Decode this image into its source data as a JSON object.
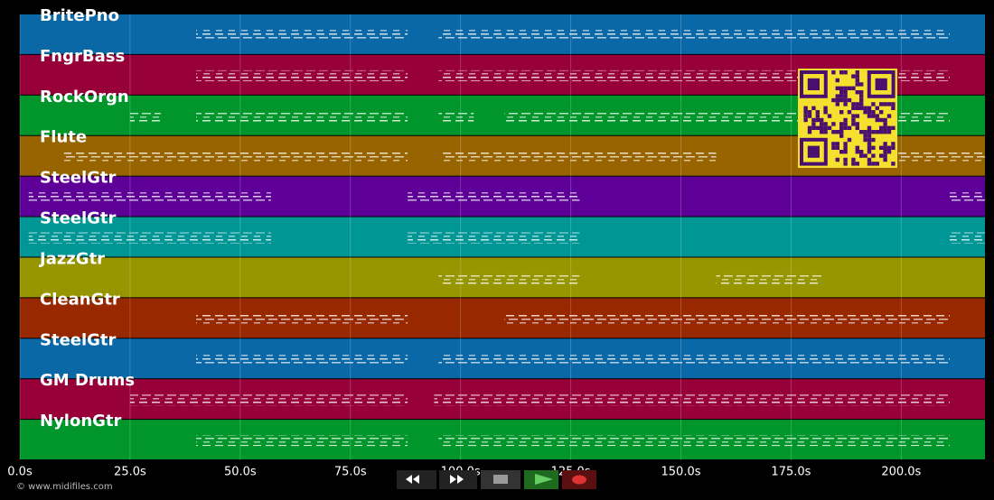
{
  "chart_data": {
    "type": "timeline",
    "xlim": [
      0,
      219
    ],
    "xticks": [
      {
        "value": 0,
        "label": "0.0s"
      },
      {
        "value": 25,
        "label": "25.0s"
      },
      {
        "value": 50,
        "label": "50.0s"
      },
      {
        "value": 75,
        "label": "75.0s"
      },
      {
        "value": 100,
        "label": "100.0s"
      },
      {
        "value": 125,
        "label": "125.0s"
      },
      {
        "value": 150,
        "label": "150.0s"
      },
      {
        "value": 175,
        "label": "175.0s"
      },
      {
        "value": 200,
        "label": "200.0s"
      }
    ],
    "grid": true,
    "series": [
      {
        "name": "BritePno",
        "color": "#0a68a6",
        "segments": [
          [
            40,
            88
          ],
          [
            95,
            211
          ]
        ]
      },
      {
        "name": "FngrBass",
        "color": "#98003a",
        "segments": [
          [
            40,
            88
          ],
          [
            95,
            211
          ]
        ]
      },
      {
        "name": "RockOrgn",
        "color": "#00962c",
        "segments": [
          [
            25,
            32
          ],
          [
            40,
            88
          ],
          [
            95,
            103
          ],
          [
            110,
            211
          ]
        ]
      },
      {
        "name": "Flute",
        "color": "#986400",
        "segments": [
          [
            10,
            88
          ],
          [
            96,
            158
          ],
          [
            199,
            219
          ]
        ]
      },
      {
        "name": "SteelGtr",
        "color": "#5e0098",
        "segments": [
          [
            2,
            57
          ],
          [
            88,
            127
          ],
          [
            211,
            219
          ]
        ]
      },
      {
        "name": "SteelGtr",
        "color": "#009696",
        "segments": [
          [
            2,
            57
          ],
          [
            88,
            127
          ],
          [
            211,
            219
          ]
        ]
      },
      {
        "name": "JazzGtr",
        "color": "#989600",
        "segments": [
          [
            95,
            127
          ],
          [
            158,
            182
          ]
        ]
      },
      {
        "name": "CleanGtr",
        "color": "#982800",
        "segments": [
          [
            40,
            88
          ],
          [
            110,
            211
          ]
        ]
      },
      {
        "name": "SteelGtr",
        "color": "#0a68a6",
        "segments": [
          [
            40,
            88
          ],
          [
            95,
            211
          ]
        ]
      },
      {
        "name": "GM Drums",
        "color": "#98003a",
        "segments": [
          [
            25,
            88
          ],
          [
            94,
            211
          ]
        ]
      },
      {
        "name": "NylonGtr",
        "color": "#00962c",
        "segments": [
          [
            40,
            88
          ],
          [
            95,
            211
          ]
        ]
      }
    ],
    "credit": "© www.midifiles.com"
  }
}
